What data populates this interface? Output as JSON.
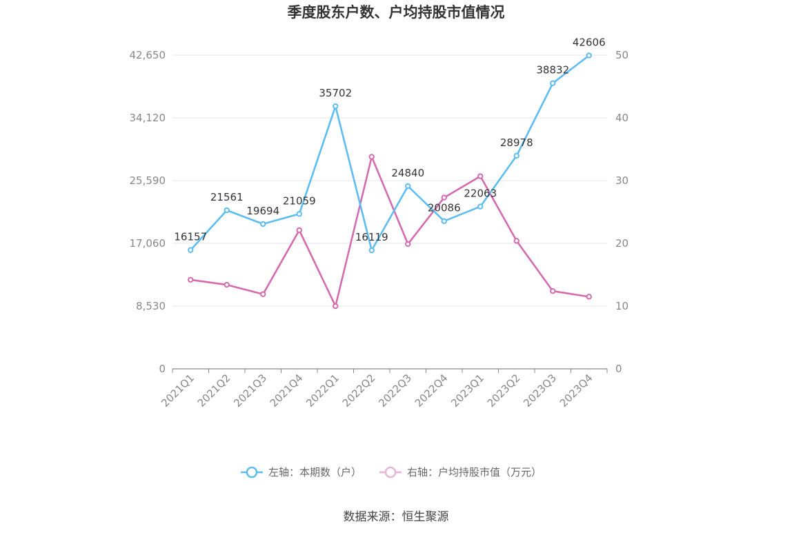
{
  "chart_data": {
    "type": "line",
    "title": "季度股东户数、户均持股市值情况",
    "categories": [
      "2021Q1",
      "2021Q2",
      "2021Q3",
      "2021Q4",
      "2022Q1",
      "2022Q2",
      "2022Q3",
      "2022Q4",
      "2023Q1",
      "2023Q2",
      "2023Q3",
      "2023Q4"
    ],
    "y_left": {
      "ticks": [
        "0",
        "8,530",
        "17,060",
        "25,590",
        "34,120",
        "42,650"
      ],
      "range": [
        0,
        42650
      ]
    },
    "y_right": {
      "ticks": [
        "0",
        "10",
        "20",
        "30",
        "40",
        "50"
      ],
      "range": [
        0,
        50
      ]
    },
    "grid": true,
    "legend_position": "bottom-center",
    "series": [
      {
        "name": "左轴：本期数（户）",
        "axis": "left",
        "color": "#5bbdf0",
        "values": [
          16157,
          21561,
          19694,
          21059,
          35702,
          16119,
          24840,
          20086,
          22063,
          28978,
          38832,
          42606
        ],
        "labels": [
          "16157",
          "21561",
          "19694",
          "21059",
          "35702",
          "16119",
          "24840",
          "20086",
          "22063",
          "28978",
          "38832",
          "42606"
        ]
      },
      {
        "name": "右轴：户均持股市值（万元）",
        "axis": "right",
        "color": "#d46aaf",
        "values": [
          14.2,
          13.4,
          11.9,
          22.1,
          10.0,
          33.8,
          19.9,
          27.3,
          30.7,
          20.4,
          12.4,
          11.5
        ]
      }
    ]
  },
  "source": "数据来源：恒生聚源"
}
